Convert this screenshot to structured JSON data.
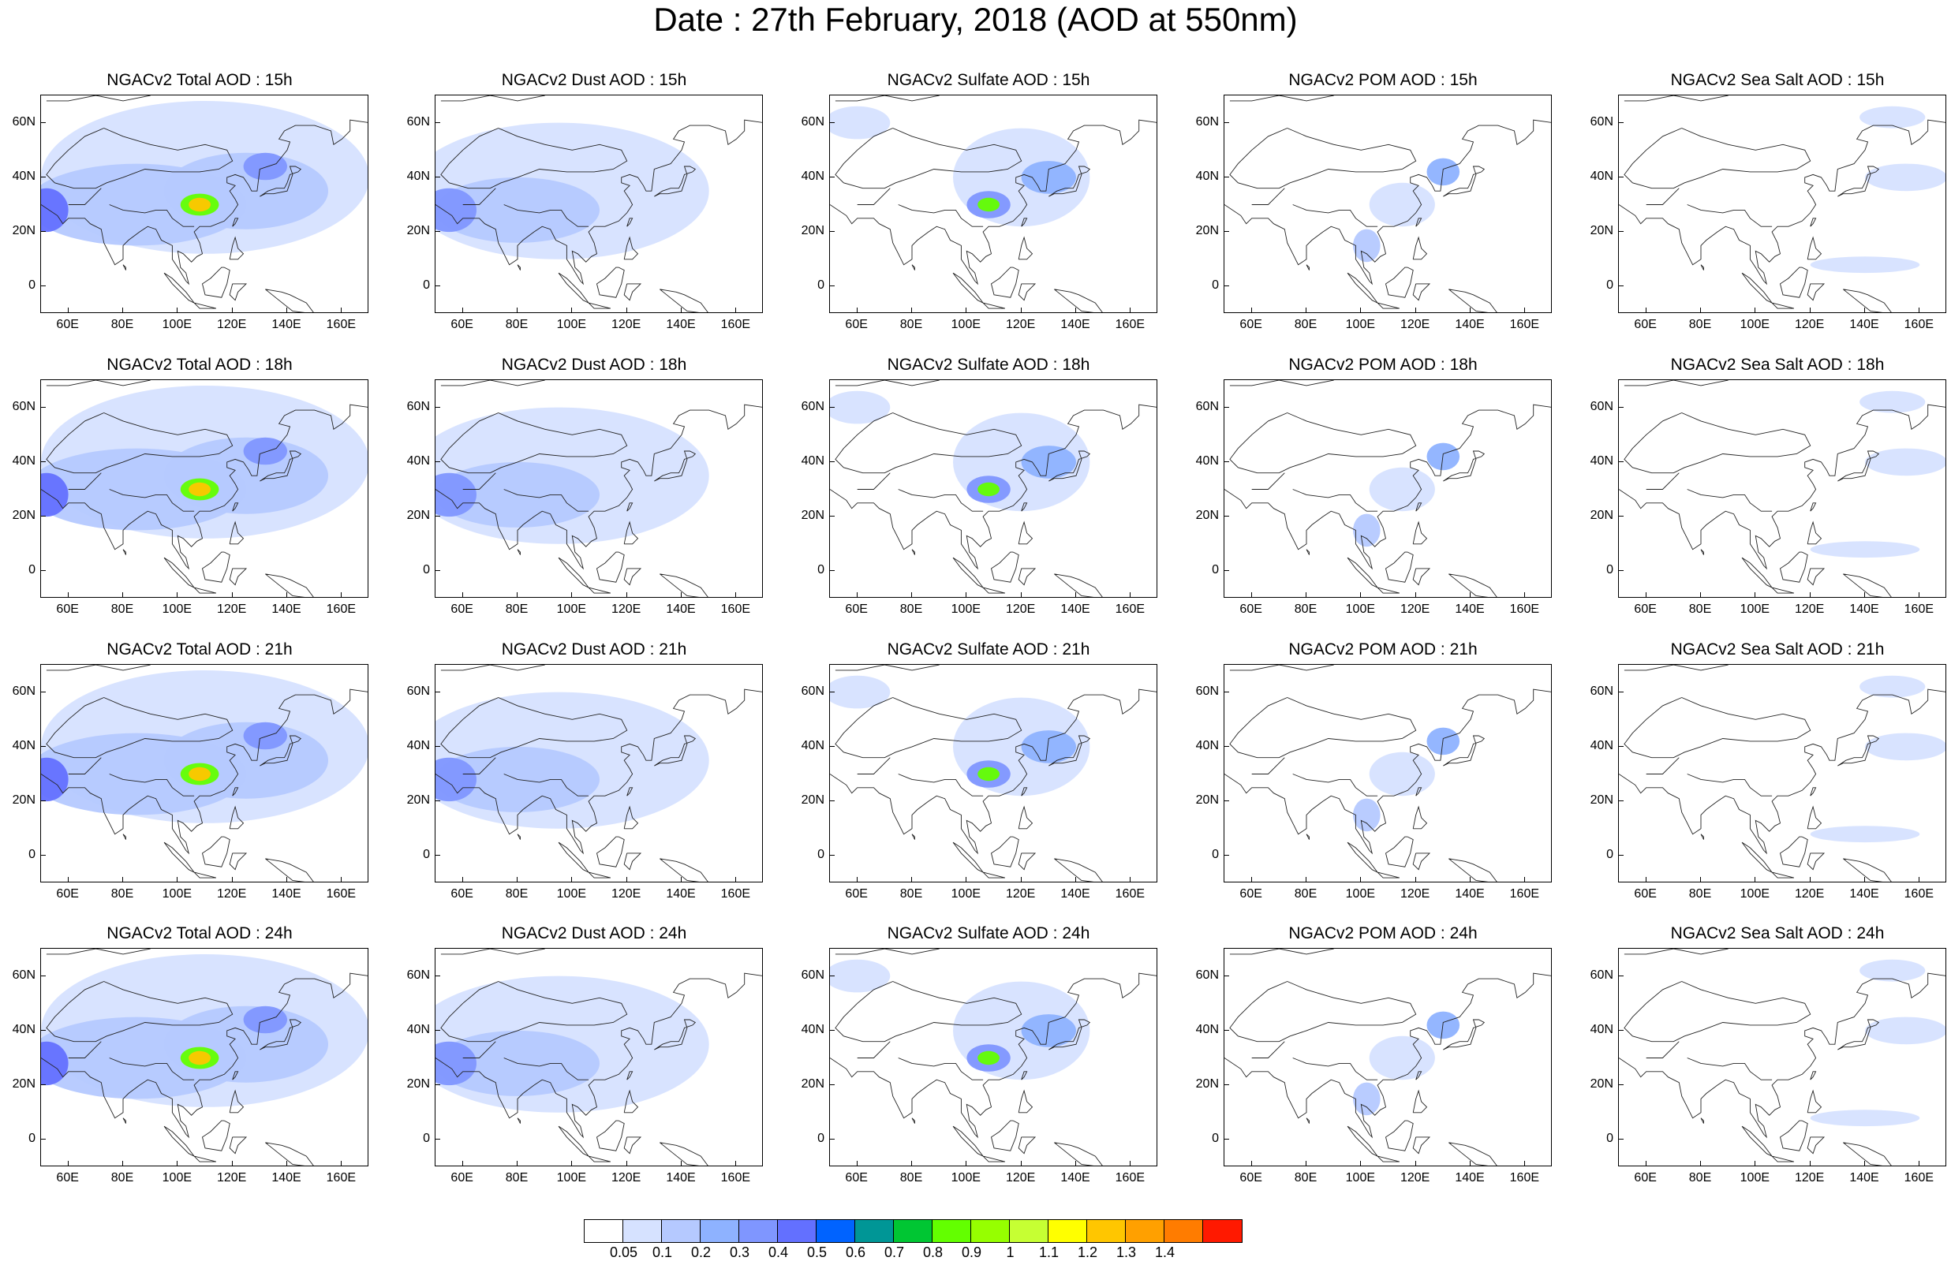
{
  "title": "Date : 27th February, 2018 (AOD at 550nm)",
  "species": [
    {
      "name": "Total",
      "label": "NGACv2 Total AOD"
    },
    {
      "name": "Dust",
      "label": "NGACv2 Dust AOD"
    },
    {
      "name": "Sulfate",
      "label": "NGACv2 Sulfate AOD"
    },
    {
      "name": "POM",
      "label": "NGACv2 POM AOD"
    },
    {
      "name": "SeaSalt",
      "label": "NGACv2 Sea Salt AOD"
    }
  ],
  "panels": [
    [
      "NGACv2 Total AOD : 15h",
      "NGACv2 Dust AOD : 15h",
      "NGACv2 Sulfate AOD : 15h",
      "NGACv2 POM AOD : 15h",
      "NGACv2 Sea Salt AOD : 15h"
    ],
    [
      "NGACv2 Total AOD : 18h",
      "NGACv2 Dust AOD : 18h",
      "NGACv2 Sulfate AOD : 18h",
      "NGACv2 POM AOD : 18h",
      "NGACv2 Sea Salt AOD : 18h"
    ],
    [
      "NGACv2 Total AOD : 21h",
      "NGACv2 Dust AOD : 21h",
      "NGACv2 Sulfate AOD : 21h",
      "NGACv2 POM AOD : 21h",
      "NGACv2 Sea Salt AOD : 21h"
    ],
    [
      "NGACv2 Total AOD : 24h",
      "NGACv2 Dust AOD : 24h",
      "NGACv2 Sulfate AOD : 24h",
      "NGACv2 POM AOD : 24h",
      "NGACv2 Sea Salt  AOD : 24h"
    ]
  ],
  "axes": {
    "lon_range": [
      50,
      170
    ],
    "lat_range": [
      -10,
      70
    ],
    "lon_ticks": [
      60,
      80,
      100,
      120,
      140,
      160
    ],
    "lon_tick_labels": [
      "60E",
      "80E",
      "100E",
      "120E",
      "140E",
      "160E"
    ],
    "lat_ticks": [
      0,
      20,
      40,
      60
    ],
    "lat_tick_labels": [
      "0",
      "20N",
      "40N",
      "60N"
    ]
  },
  "colorbar": {
    "labels": [
      "0.05",
      "0.1",
      "0.2",
      "0.3",
      "0.4",
      "0.5",
      "0.6",
      "0.7",
      "0.8",
      "0.9",
      "1",
      "1.1",
      "1.2",
      "1.3",
      "1.4"
    ],
    "colors": [
      "#ffffff",
      "#d6e2ff",
      "#b5c9ff",
      "#8eb2ff",
      "#7f96ff",
      "#6370ff",
      "#0063ff",
      "#009696",
      "#00c633",
      "#63ff00",
      "#96ff00",
      "#c6ff33",
      "#ffff00",
      "#ffc600",
      "#ffa000",
      "#ff7c00",
      "#ff1900"
    ]
  }
}
